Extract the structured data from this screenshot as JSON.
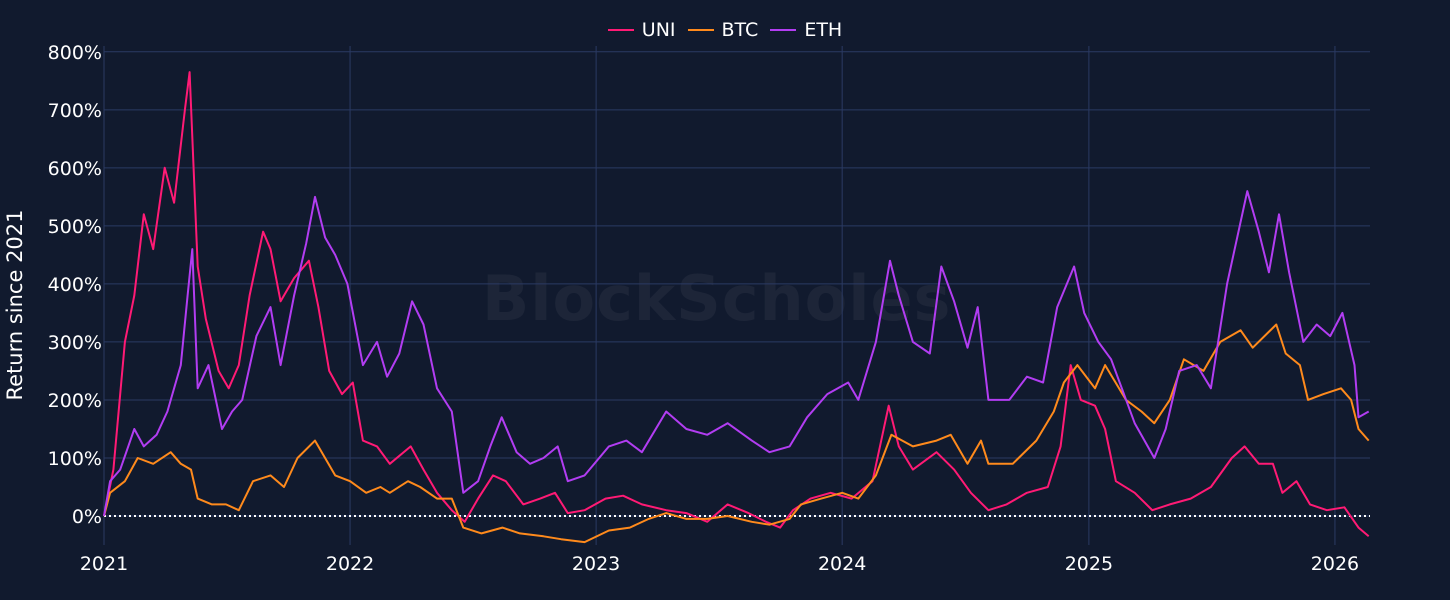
{
  "watermark": "BlockScholes",
  "chart_data": {
    "type": "line",
    "title": "",
    "xlabel": "",
    "ylabel": "Return since 2021",
    "x_ticks": [
      "2021",
      "2022",
      "2023",
      "2024",
      "2025",
      "2026"
    ],
    "xlim": [
      "2021-01-01",
      "2026-02-22"
    ],
    "y_ticks": [
      0,
      100,
      200,
      300,
      400,
      500,
      600,
      700,
      800
    ],
    "y_tick_labels": [
      "0%",
      "100%",
      "200%",
      "300%",
      "400%",
      "500%",
      "600%",
      "700%",
      "800%"
    ],
    "ylim": [
      -50,
      810
    ],
    "grid": true,
    "legend_position": "top-center",
    "reference_line": {
      "y": 0,
      "style": "dotted",
      "color": "#ffffff"
    },
    "series": [
      {
        "name": "UNI",
        "color": "#ff1a75",
        "points": [
          [
            "2021-01-01",
            0
          ],
          [
            "2021-01-15",
            80
          ],
          [
            "2021-02-01",
            300
          ],
          [
            "2021-02-15",
            380
          ],
          [
            "2021-03-01",
            520
          ],
          [
            "2021-03-15",
            460
          ],
          [
            "2021-04-01",
            600
          ],
          [
            "2021-04-15",
            540
          ],
          [
            "2021-05-01",
            700
          ],
          [
            "2021-05-08",
            765
          ],
          [
            "2021-05-20",
            430
          ],
          [
            "2021-06-01",
            340
          ],
          [
            "2021-06-20",
            250
          ],
          [
            "2021-07-05",
            220
          ],
          [
            "2021-07-20",
            260
          ],
          [
            "2021-08-05",
            380
          ],
          [
            "2021-08-25",
            490
          ],
          [
            "2021-09-05",
            460
          ],
          [
            "2021-09-20",
            370
          ],
          [
            "2021-10-10",
            410
          ],
          [
            "2021-11-01",
            440
          ],
          [
            "2021-11-15",
            360
          ],
          [
            "2021-12-01",
            250
          ],
          [
            "2021-12-20",
            210
          ],
          [
            "2022-01-05",
            230
          ],
          [
            "2022-01-20",
            130
          ],
          [
            "2022-02-10",
            120
          ],
          [
            "2022-03-01",
            90
          ],
          [
            "2022-04-01",
            120
          ],
          [
            "2022-04-20",
            80
          ],
          [
            "2022-05-10",
            40
          ],
          [
            "2022-06-01",
            10
          ],
          [
            "2022-06-20",
            -10
          ],
          [
            "2022-07-10",
            30
          ],
          [
            "2022-08-01",
            70
          ],
          [
            "2022-08-20",
            60
          ],
          [
            "2022-09-15",
            20
          ],
          [
            "2022-10-10",
            30
          ],
          [
            "2022-11-01",
            40
          ],
          [
            "2022-11-20",
            5
          ],
          [
            "2022-12-15",
            10
          ],
          [
            "2023-01-15",
            30
          ],
          [
            "2023-02-10",
            35
          ],
          [
            "2023-03-10",
            20
          ],
          [
            "2023-04-15",
            10
          ],
          [
            "2023-05-15",
            5
          ],
          [
            "2023-06-15",
            -10
          ],
          [
            "2023-07-15",
            20
          ],
          [
            "2023-08-15",
            5
          ],
          [
            "2023-09-10",
            -10
          ],
          [
            "2023-10-01",
            -20
          ],
          [
            "2023-10-20",
            10
          ],
          [
            "2023-11-15",
            30
          ],
          [
            "2023-12-15",
            40
          ],
          [
            "2024-01-15",
            30
          ],
          [
            "2024-02-15",
            60
          ],
          [
            "2024-03-10",
            190
          ],
          [
            "2024-03-25",
            120
          ],
          [
            "2024-04-15",
            80
          ],
          [
            "2024-05-20",
            110
          ],
          [
            "2024-06-15",
            80
          ],
          [
            "2024-07-10",
            40
          ],
          [
            "2024-08-05",
            10
          ],
          [
            "2024-09-01",
            20
          ],
          [
            "2024-10-01",
            40
          ],
          [
            "2024-11-01",
            50
          ],
          [
            "2024-11-20",
            120
          ],
          [
            "2024-12-05",
            260
          ],
          [
            "2024-12-20",
            200
          ],
          [
            "2025-01-10",
            190
          ],
          [
            "2025-01-25",
            150
          ],
          [
            "2025-02-10",
            60
          ],
          [
            "2025-03-10",
            40
          ],
          [
            "2025-04-05",
            10
          ],
          [
            "2025-05-01",
            20
          ],
          [
            "2025-06-01",
            30
          ],
          [
            "2025-07-01",
            50
          ],
          [
            "2025-08-01",
            100
          ],
          [
            "2025-08-20",
            120
          ],
          [
            "2025-09-10",
            90
          ],
          [
            "2025-10-01",
            90
          ],
          [
            "2025-10-15",
            40
          ],
          [
            "2025-11-05",
            60
          ],
          [
            "2025-11-25",
            20
          ],
          [
            "2025-12-20",
            10
          ],
          [
            "2026-01-15",
            15
          ],
          [
            "2026-02-05",
            -20
          ],
          [
            "2026-02-20",
            -35
          ]
        ]
      },
      {
        "name": "BTC",
        "color": "#ff8a1c",
        "points": [
          [
            "2021-01-01",
            0
          ],
          [
            "2021-01-10",
            40
          ],
          [
            "2021-02-01",
            60
          ],
          [
            "2021-02-20",
            100
          ],
          [
            "2021-03-15",
            90
          ],
          [
            "2021-04-10",
            110
          ],
          [
            "2021-04-25",
            90
          ],
          [
            "2021-05-10",
            80
          ],
          [
            "2021-05-20",
            30
          ],
          [
            "2021-06-10",
            20
          ],
          [
            "2021-07-01",
            20
          ],
          [
            "2021-07-20",
            10
          ],
          [
            "2021-08-10",
            60
          ],
          [
            "2021-09-05",
            70
          ],
          [
            "2021-09-25",
            50
          ],
          [
            "2021-10-15",
            100
          ],
          [
            "2021-11-10",
            130
          ],
          [
            "2021-11-25",
            100
          ],
          [
            "2021-12-10",
            70
          ],
          [
            "2022-01-01",
            60
          ],
          [
            "2022-01-25",
            40
          ],
          [
            "2022-02-15",
            50
          ],
          [
            "2022-03-01",
            40
          ],
          [
            "2022-03-28",
            60
          ],
          [
            "2022-04-15",
            50
          ],
          [
            "2022-05-10",
            30
          ],
          [
            "2022-06-01",
            30
          ],
          [
            "2022-06-18",
            -20
          ],
          [
            "2022-07-15",
            -30
          ],
          [
            "2022-08-15",
            -20
          ],
          [
            "2022-09-10",
            -30
          ],
          [
            "2022-10-15",
            -35
          ],
          [
            "2022-11-10",
            -40
          ],
          [
            "2022-12-15",
            -45
          ],
          [
            "2023-01-20",
            -25
          ],
          [
            "2023-02-20",
            -20
          ],
          [
            "2023-03-20",
            -5
          ],
          [
            "2023-04-15",
            5
          ],
          [
            "2023-05-15",
            -5
          ],
          [
            "2023-06-15",
            -5
          ],
          [
            "2023-07-15",
            0
          ],
          [
            "2023-08-20",
            -10
          ],
          [
            "2023-09-15",
            -15
          ],
          [
            "2023-10-15",
            -5
          ],
          [
            "2023-11-01",
            20
          ],
          [
            "2023-12-01",
            30
          ],
          [
            "2024-01-01",
            40
          ],
          [
            "2024-01-25",
            30
          ],
          [
            "2024-02-20",
            70
          ],
          [
            "2024-03-14",
            140
          ],
          [
            "2024-04-15",
            120
          ],
          [
            "2024-05-20",
            130
          ],
          [
            "2024-06-10",
            140
          ],
          [
            "2024-07-05",
            90
          ],
          [
            "2024-07-25",
            130
          ],
          [
            "2024-08-05",
            90
          ],
          [
            "2024-09-10",
            90
          ],
          [
            "2024-10-15",
            130
          ],
          [
            "2024-11-10",
            180
          ],
          [
            "2024-11-25",
            230
          ],
          [
            "2024-12-15",
            260
          ],
          [
            "2025-01-10",
            220
          ],
          [
            "2025-01-25",
            260
          ],
          [
            "2025-02-25",
            200
          ],
          [
            "2025-03-20",
            180
          ],
          [
            "2025-04-08",
            160
          ],
          [
            "2025-05-01",
            200
          ],
          [
            "2025-05-22",
            270
          ],
          [
            "2025-06-20",
            250
          ],
          [
            "2025-07-15",
            300
          ],
          [
            "2025-08-14",
            320
          ],
          [
            "2025-09-01",
            290
          ],
          [
            "2025-10-06",
            330
          ],
          [
            "2025-10-20",
            280
          ],
          [
            "2025-11-10",
            260
          ],
          [
            "2025-11-22",
            200
          ],
          [
            "2025-12-15",
            210
          ],
          [
            "2026-01-10",
            220
          ],
          [
            "2026-01-25",
            200
          ],
          [
            "2026-02-05",
            150
          ],
          [
            "2026-02-20",
            130
          ]
        ]
      },
      {
        "name": "ETH",
        "color": "#b23df2",
        "points": [
          [
            "2021-01-01",
            0
          ],
          [
            "2021-01-10",
            60
          ],
          [
            "2021-01-25",
            80
          ],
          [
            "2021-02-15",
            150
          ],
          [
            "2021-03-01",
            120
          ],
          [
            "2021-03-20",
            140
          ],
          [
            "2021-04-05",
            180
          ],
          [
            "2021-04-25",
            260
          ],
          [
            "2021-05-05",
            380
          ],
          [
            "2021-05-12",
            460
          ],
          [
            "2021-05-20",
            220
          ],
          [
            "2021-06-05",
            260
          ],
          [
            "2021-06-25",
            150
          ],
          [
            "2021-07-10",
            180
          ],
          [
            "2021-07-25",
            200
          ],
          [
            "2021-08-15",
            310
          ],
          [
            "2021-09-05",
            360
          ],
          [
            "2021-09-20",
            260
          ],
          [
            "2021-10-10",
            380
          ],
          [
            "2021-10-28",
            470
          ],
          [
            "2021-11-10",
            550
          ],
          [
            "2021-11-25",
            480
          ],
          [
            "2021-12-10",
            450
          ],
          [
            "2021-12-28",
            400
          ],
          [
            "2022-01-20",
            260
          ],
          [
            "2022-02-10",
            300
          ],
          [
            "2022-02-25",
            240
          ],
          [
            "2022-03-15",
            280
          ],
          [
            "2022-04-03",
            370
          ],
          [
            "2022-04-20",
            330
          ],
          [
            "2022-05-10",
            220
          ],
          [
            "2022-06-01",
            180
          ],
          [
            "2022-06-18",
            40
          ],
          [
            "2022-07-10",
            60
          ],
          [
            "2022-07-28",
            120
          ],
          [
            "2022-08-14",
            170
          ],
          [
            "2022-09-05",
            110
          ],
          [
            "2022-09-25",
            90
          ],
          [
            "2022-10-15",
            100
          ],
          [
            "2022-11-05",
            120
          ],
          [
            "2022-11-20",
            60
          ],
          [
            "2022-12-15",
            70
          ],
          [
            "2023-01-20",
            120
          ],
          [
            "2023-02-15",
            130
          ],
          [
            "2023-03-10",
            110
          ],
          [
            "2023-04-15",
            180
          ],
          [
            "2023-05-15",
            150
          ],
          [
            "2023-06-15",
            140
          ],
          [
            "2023-07-15",
            160
          ],
          [
            "2023-08-20",
            130
          ],
          [
            "2023-09-15",
            110
          ],
          [
            "2023-10-15",
            120
          ],
          [
            "2023-11-10",
            170
          ],
          [
            "2023-12-10",
            210
          ],
          [
            "2024-01-10",
            230
          ],
          [
            "2024-01-25",
            200
          ],
          [
            "2024-02-20",
            300
          ],
          [
            "2024-03-12",
            440
          ],
          [
            "2024-03-25",
            380
          ],
          [
            "2024-04-15",
            300
          ],
          [
            "2024-05-10",
            280
          ],
          [
            "2024-05-27",
            430
          ],
          [
            "2024-06-15",
            370
          ],
          [
            "2024-07-05",
            290
          ],
          [
            "2024-07-20",
            360
          ],
          [
            "2024-08-05",
            200
          ],
          [
            "2024-09-05",
            200
          ],
          [
            "2024-10-01",
            240
          ],
          [
            "2024-10-25",
            230
          ],
          [
            "2024-11-15",
            360
          ],
          [
            "2024-12-10",
            430
          ],
          [
            "2024-12-25",
            350
          ],
          [
            "2025-01-15",
            300
          ],
          [
            "2025-02-03",
            270
          ],
          [
            "2025-03-10",
            160
          ],
          [
            "2025-04-08",
            100
          ],
          [
            "2025-04-25",
            150
          ],
          [
            "2025-05-15",
            250
          ],
          [
            "2025-06-10",
            260
          ],
          [
            "2025-07-01",
            220
          ],
          [
            "2025-07-25",
            400
          ],
          [
            "2025-08-24",
            560
          ],
          [
            "2025-09-10",
            490
          ],
          [
            "2025-09-25",
            420
          ],
          [
            "2025-10-10",
            520
          ],
          [
            "2025-10-25",
            420
          ],
          [
            "2025-11-15",
            300
          ],
          [
            "2025-12-05",
            330
          ],
          [
            "2025-12-25",
            310
          ],
          [
            "2026-01-12",
            350
          ],
          [
            "2026-01-30",
            260
          ],
          [
            "2026-02-05",
            170
          ],
          [
            "2026-02-20",
            180
          ]
        ]
      }
    ]
  }
}
